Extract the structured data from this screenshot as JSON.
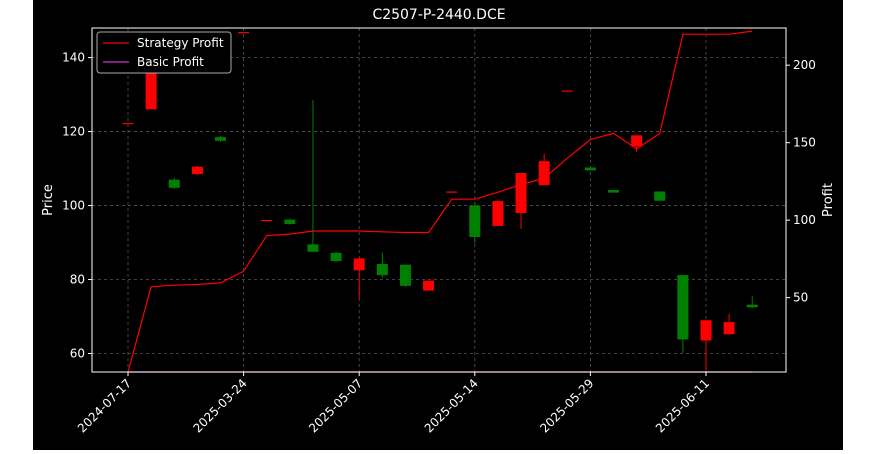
{
  "chart_data": {
    "type": "candlestick",
    "title": "C2507-P-2440.DCE",
    "xlabel": "",
    "ylabel": "Price",
    "ylabel_right": "Profit",
    "ylim": [
      55,
      148
    ],
    "ylim_right": [
      2,
      224
    ],
    "yticks": [
      60,
      80,
      100,
      120,
      140
    ],
    "yticks_right": [
      50,
      100,
      150,
      200
    ],
    "xtick_labels": [
      "2024-07-17",
      "2025-03-24",
      "2025-05-07",
      "2025-05-14",
      "2025-05-29",
      "2025-06-11"
    ],
    "xtick_indices": [
      0,
      5,
      10,
      15,
      20,
      25
    ],
    "grid": true,
    "legend_position": "top-left",
    "colors": {
      "up": "#008000",
      "down": "#ff0000",
      "strategy": "#ff0000",
      "basic": "#cc33cc",
      "background": "#000000",
      "axes": "#ffffff"
    },
    "candles": [
      {
        "open": 122.3,
        "close": 122.1,
        "high": 122.3,
        "low": 122.1
      },
      {
        "open": 142.0,
        "close": 126.0,
        "high": 145.0,
        "low": 126.0
      },
      {
        "open": 104.8,
        "close": 107.0,
        "high": 107.5,
        "low": 104.5
      },
      {
        "open": 110.5,
        "close": 108.5,
        "high": 110.8,
        "low": 108.2
      },
      {
        "open": 117.5,
        "close": 118.5,
        "high": 118.8,
        "low": 117.3
      },
      {
        "open": 146.9,
        "close": 146.7,
        "high": 146.9,
        "low": 146.7
      },
      {
        "open": 96.1,
        "close": 95.9,
        "high": 96.1,
        "low": 95.9
      },
      {
        "open": 95.0,
        "close": 96.2,
        "high": 96.5,
        "low": 94.8
      },
      {
        "open": 87.5,
        "close": 89.5,
        "high": 128.5,
        "low": 87.5
      },
      {
        "open": 85.0,
        "close": 87.2,
        "high": 87.5,
        "low": 84.7
      },
      {
        "open": 85.7,
        "close": 82.5,
        "high": 86.0,
        "low": 74.7
      },
      {
        "open": 81.2,
        "close": 84.2,
        "high": 87.3,
        "low": 80.5
      },
      {
        "open": 78.3,
        "close": 84.0,
        "high": 84.0,
        "low": 78.0
      },
      {
        "open": 79.7,
        "close": 77.0,
        "high": 79.7,
        "low": 77.0
      },
      {
        "open": 103.8,
        "close": 103.6,
        "high": 103.8,
        "low": 103.6
      },
      {
        "open": 91.5,
        "close": 100.0,
        "high": 101.0,
        "low": 89.7
      },
      {
        "open": 101.2,
        "close": 94.5,
        "high": 101.6,
        "low": 94.5
      },
      {
        "open": 108.8,
        "close": 98.0,
        "high": 108.8,
        "low": 93.7
      },
      {
        "open": 112.0,
        "close": 105.5,
        "high": 114.0,
        "low": 105.5
      },
      {
        "open": 131.1,
        "close": 130.9,
        "high": 131.1,
        "low": 130.9
      },
      {
        "open": 109.5,
        "close": 110.3,
        "high": 110.3,
        "low": 109.5
      },
      {
        "open": 103.5,
        "close": 104.2,
        "high": 104.2,
        "low": 103.5
      },
      {
        "open": 119.0,
        "close": 116.0,
        "high": 119.0,
        "low": 114.5
      },
      {
        "open": 101.3,
        "close": 103.8,
        "high": 103.8,
        "low": 101.3
      },
      {
        "open": 63.8,
        "close": 81.2,
        "high": 81.2,
        "low": 60.2
      },
      {
        "open": 69.0,
        "close": 63.5,
        "high": 69.0,
        "low": 55.5
      },
      {
        "open": 68.5,
        "close": 65.2,
        "high": 70.7,
        "low": 65.2
      },
      {
        "open": 72.5,
        "close": 73.2,
        "high": 75.5,
        "low": 72.3
      }
    ],
    "series": [
      {
        "name": "Strategy Profit",
        "values": [
          2,
          57,
          58,
          58.5,
          59.5,
          67,
          90,
          91,
          93,
          93,
          93,
          92.5,
          92,
          92,
          113.5,
          113.5,
          118,
          123,
          127,
          140,
          152,
          156,
          146,
          156,
          220,
          220,
          220,
          222
        ]
      },
      {
        "name": "Basic Profit",
        "values": [
          2,
          2,
          2,
          2,
          2,
          2,
          2,
          2,
          2,
          2,
          2,
          2,
          2,
          2,
          2,
          2,
          2,
          2,
          2,
          2,
          2,
          2,
          2,
          2,
          2,
          2,
          2,
          2
        ]
      }
    ]
  }
}
